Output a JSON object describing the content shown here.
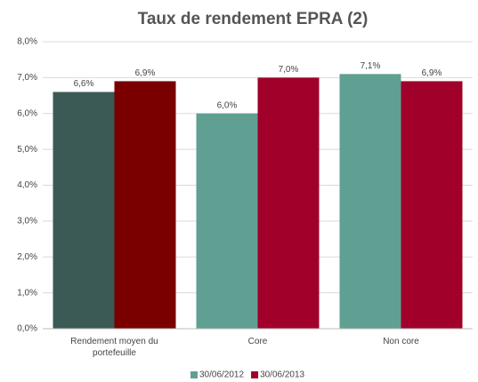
{
  "chart_data": {
    "type": "bar",
    "title": "Taux de rendement EPRA (2)",
    "categories": [
      "Rendement moyen du portefeuille",
      "Core",
      "Non core"
    ],
    "series": [
      {
        "name": "30/06/2012",
        "color": "#5fa093",
        "colors": [
          "#3b5a55",
          "#5fa093",
          "#5fa093"
        ],
        "values": [
          6.6,
          6.0,
          7.1
        ],
        "value_labels": [
          "6,6%",
          "6,0%",
          "7,1%"
        ]
      },
      {
        "name": "30/06/2013",
        "color": "#a0002a",
        "colors": [
          "#7a0000",
          "#a0002a",
          "#a0002a"
        ],
        "values": [
          6.9,
          7.0,
          6.9
        ],
        "value_labels": [
          "6,9%",
          "7,0%",
          "6,9%"
        ]
      }
    ],
    "ylim": [
      0,
      8
    ],
    "yticks": [
      {
        "value": 0,
        "label": "0,0%"
      },
      {
        "value": 1,
        "label": "1,0%"
      },
      {
        "value": 2,
        "label": "2,0%"
      },
      {
        "value": 3,
        "label": "3,0%"
      },
      {
        "value": 4,
        "label": "4,0%"
      },
      {
        "value": 5,
        "label": "5,0%"
      },
      {
        "value": 6,
        "label": "6,0%"
      },
      {
        "value": 7,
        "label": "7,0%"
      },
      {
        "value": 8,
        "label": "8,0%"
      }
    ],
    "grid": true,
    "legend": "bottom"
  }
}
